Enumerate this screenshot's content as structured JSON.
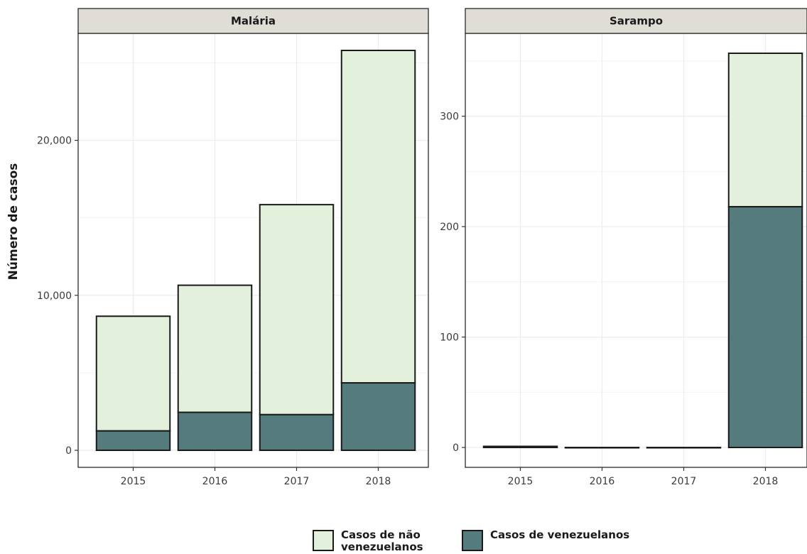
{
  "colors": {
    "non_venezuelan": "#e3f1dc",
    "venezuelan": "#557b7c",
    "strip_bg": "#e0dcd6",
    "grid": "#ececec",
    "border": "#2a2a2a"
  },
  "chart_data": [
    {
      "type": "bar",
      "stacked": true,
      "panel_title": "Malária",
      "ylabel": "Número de casos",
      "categories": [
        "2015",
        "2016",
        "2017",
        "2018"
      ],
      "series": [
        {
          "name": "Casos de venezuelanos",
          "values": [
            1250,
            2450,
            2300,
            4350
          ]
        },
        {
          "name": "Casos de não venezuelanos",
          "values": [
            7400,
            8200,
            13550,
            21450
          ]
        }
      ],
      "ylim": [
        -1100,
        26900
      ],
      "yticks": [
        0,
        10000,
        20000
      ],
      "ytick_labels": [
        "0",
        "10,000",
        "20,000"
      ],
      "grid": true
    },
    {
      "type": "bar",
      "stacked": true,
      "panel_title": "Sarampo",
      "categories": [
        "2015",
        "2016",
        "2017",
        "2018"
      ],
      "series": [
        {
          "name": "Casos de venezuelanos",
          "values": [
            1,
            0,
            0,
            218
          ]
        },
        {
          "name": "Casos de não venezuelanos",
          "values": [
            0,
            0,
            0,
            139
          ]
        }
      ],
      "ylim": [
        -18,
        375
      ],
      "yticks": [
        0,
        100,
        200,
        300
      ],
      "ytick_labels": [
        "0",
        "100",
        "200",
        "300"
      ],
      "grid": true
    }
  ],
  "legend": {
    "position": "bottom",
    "items": [
      {
        "label": "Casos de não venezuelanos",
        "color": "#e3f1dc"
      },
      {
        "label": "Casos de venezuelanos",
        "color": "#557b7c"
      }
    ]
  }
}
